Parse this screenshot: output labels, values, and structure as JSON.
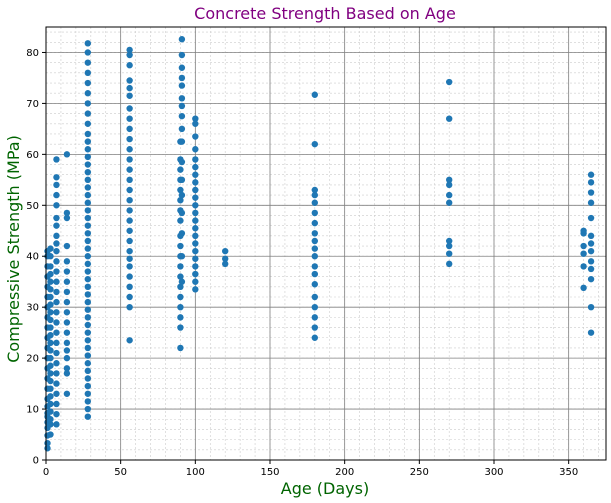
{
  "chart_data": {
    "type": "scatter",
    "title": "Concrete Strength Based on Age",
    "xlabel": "Age (Days)",
    "ylabel": "Compressive Strength (MPa)",
    "xlim": [
      0,
      375
    ],
    "ylim": [
      0,
      85
    ],
    "xticks": [
      0,
      50,
      100,
      150,
      200,
      250,
      300,
      350
    ],
    "yticks": [
      0,
      10,
      20,
      30,
      40,
      50,
      60,
      70,
      80
    ],
    "grid": true,
    "minor_grid": true,
    "colors": {
      "point": "#1f77b4",
      "title": "#800080",
      "axis_label": "#006400",
      "major_grid": "#808080",
      "minor_grid": "#cccccc"
    },
    "series": [
      {
        "x_groups": [
          1,
          3,
          7,
          14,
          28,
          56,
          90,
          91,
          100,
          120,
          180,
          270,
          360,
          365
        ],
        "points": {
          "1": [
            2.3,
            3.3,
            4.8,
            6.3,
            7.4,
            8.5,
            9.2,
            10.5,
            12.0,
            14.0,
            16.0,
            18.0,
            20.0,
            22.0,
            24.0,
            26.0,
            28.0,
            30.0,
            32.0,
            34.0,
            36.0,
            38.0,
            40.0,
            41.0
          ],
          "3": [
            5.0,
            7.0,
            8.0,
            9.5,
            11.0,
            12.5,
            14.0,
            15.5,
            17.0,
            18.5,
            20.0,
            21.5,
            23.0,
            24.5,
            26.0,
            27.5,
            29.0,
            30.5,
            32.0,
            33.5,
            35.0,
            36.5,
            38.0,
            40.0,
            41.5
          ],
          "7": [
            7.0,
            9.0,
            11.0,
            13.0,
            15.0,
            17.0,
            19.0,
            21.0,
            23.0,
            25.0,
            27.0,
            29.0,
            31.0,
            33.0,
            35.0,
            37.0,
            39.0,
            41.0,
            42.5,
            44.0,
            46.0,
            47.5,
            50.0,
            52.0,
            54.0,
            55.5,
            59.0
          ],
          "14": [
            13.0,
            17.0,
            18.0,
            20.0,
            21.5,
            23.0,
            25.0,
            27.0,
            29.0,
            31.0,
            33.0,
            35.0,
            37.0,
            39.0,
            42.0,
            47.5,
            48.5,
            60.0
          ],
          "28": [
            8.5,
            10.0,
            11.5,
            13.0,
            14.5,
            16.0,
            17.5,
            19.0,
            20.5,
            22.0,
            23.5,
            25.0,
            26.5,
            28.0,
            29.5,
            31.0,
            32.5,
            34.0,
            35.5,
            37.0,
            38.5,
            40.0,
            41.5,
            43.0,
            44.5,
            46.0,
            47.5,
            49.0,
            50.5,
            52.0,
            53.5,
            55.0,
            56.5,
            58.0,
            59.5,
            61.0,
            62.5,
            64.0,
            66.0,
            68.0,
            70.0,
            72.0,
            74.0,
            76.0,
            78.0,
            80.0,
            81.8
          ],
          "56": [
            23.5,
            30.0,
            32.0,
            34.0,
            36.0,
            38.0,
            39.5,
            41.0,
            43.0,
            45.0,
            47.0,
            49.0,
            51.0,
            53.0,
            55.0,
            57.0,
            59.0,
            61.0,
            63.0,
            65.0,
            67.0,
            69.0,
            71.5,
            73.0,
            74.5,
            77.5,
            79.5,
            80.5
          ],
          "90": [
            22.0,
            26.0,
            28.0,
            30.0,
            32.0,
            34.0,
            36.0,
            38.0,
            40.0,
            42.0,
            44.0,
            47.0,
            49.0,
            51.0,
            53.0,
            55.0,
            57.0,
            59.0,
            62.5
          ],
          "91": [
            35.0,
            40.0,
            44.5,
            48.5,
            52.0,
            55.0,
            58.5,
            62.5,
            65.0,
            67.5,
            69.5,
            71.0,
            73.5,
            75.0,
            77.0,
            79.5,
            82.6
          ],
          "100": [
            33.5,
            35.0,
            36.5,
            38.0,
            39.5,
            41.0,
            42.5,
            44.0,
            45.5,
            47.0,
            48.5,
            50.0,
            51.5,
            53.0,
            54.5,
            56.0,
            57.5,
            59.0,
            61.0,
            63.5,
            66.0,
            67.0
          ],
          "120": [
            38.5,
            39.5,
            41.0
          ],
          "180": [
            24.0,
            26.0,
            28.0,
            30.0,
            32.0,
            34.5,
            36.5,
            38.0,
            40.0,
            41.5,
            43.0,
            44.5,
            46.5,
            48.5,
            50.5,
            52.0,
            53.0,
            62.0,
            71.7
          ],
          "270": [
            38.5,
            40.5,
            42.0,
            43.0,
            50.5,
            52.0,
            54.0,
            55.0,
            67.0,
            74.2
          ],
          "360": [
            33.8,
            38.0,
            40.5,
            42.0,
            44.5,
            45.0
          ],
          "365": [
            25.0,
            30.0,
            35.5,
            37.5,
            39.0,
            41.0,
            42.5,
            44.0,
            47.5,
            50.5,
            52.5,
            54.5,
            56.0
          ]
        }
      }
    ]
  }
}
